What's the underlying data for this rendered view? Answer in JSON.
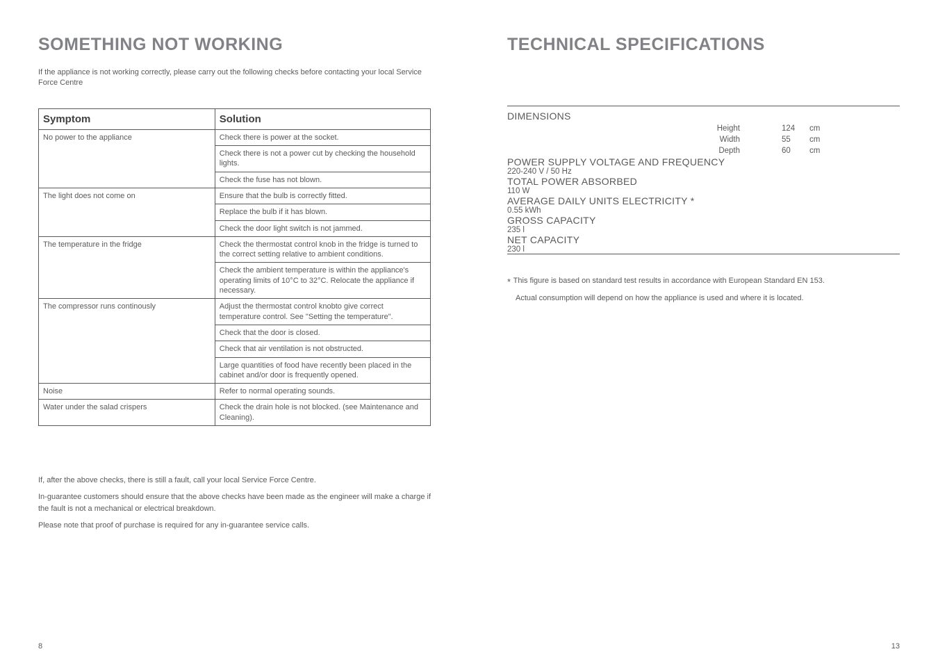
{
  "left": {
    "title": "SOMETHING NOT WORKING",
    "intro": "If the appliance is not working correctly, please carry out the following checks before contacting your local Service Force Centre",
    "table": {
      "head_symptom": "Symptom",
      "head_solution": "Solution",
      "groups": [
        {
          "symptom": "No power to the appliance",
          "solutions": [
            "Check there is power at the socket.",
            "Check there is not a power cut by checking the household lights.",
            "Check the fuse has not blown."
          ]
        },
        {
          "symptom": "The light does not come on",
          "solutions": [
            "Ensure that the bulb is correctly fitted.",
            "Replace the bulb if it has blown.",
            "Check the door light switch is not jammed."
          ]
        },
        {
          "symptom": "The temperature in the fridge",
          "solutions": [
            "Check the thermostat control knob in the fridge is turned to the correct setting relative to ambient conditions.",
            "Check the ambient temperature is within the appliance's operating limits of 10°C  to 32°C. Relocate the appliance if necessary."
          ]
        },
        {
          "symptom": "The compressor runs continously",
          "solutions": [
            "Adjust the thermostat control knobto give correct temperature control. See \"Setting the temperature\".",
            "Check that the door is closed.",
            "Check that air ventilation is not obstructed.",
            "Large quantities of food have recently been placed in the cabinet and/or door is frequently opened."
          ]
        },
        {
          "symptom": "Noise",
          "solutions": [
            "Refer to normal operating sounds."
          ]
        },
        {
          "symptom": "Water under the salad crispers",
          "solutions": [
            "Check the drain hole is not blocked. (see Maintenance and Cleaning)."
          ]
        }
      ]
    },
    "after": [
      "If, after the above checks, there is still a fault, call your local Service Force Centre.",
      "In-guarantee customers should ensure that the above checks have been made as the engineer will make a charge if the fault is not a mechanical or electrical breakdown.",
      "Please note that proof of purchase is required for any in-guarantee service calls."
    ],
    "pagenum": "8"
  },
  "right": {
    "title": "TECHNICAL SPECIFICATIONS",
    "dimensions_header": "DIMENSIONS",
    "dims": [
      {
        "label": "Height",
        "num": "124",
        "unit": "cm"
      },
      {
        "label": "Width",
        "num": "55",
        "unit": "cm"
      },
      {
        "label": "Depth",
        "num": "60",
        "unit": "cm"
      }
    ],
    "rows": [
      {
        "label": "POWER SUPPLY VOLTAGE AND FREQUENCY",
        "value": "220-240 V / 50 Hz"
      },
      {
        "label": "TOTAL POWER ABSORBED",
        "value": "110 W"
      },
      {
        "label": "AVERAGE DAILY UNITS ELECTRICITY *",
        "value": "0.55 kWh"
      },
      {
        "label": "GROSS CAPACITY",
        "value": "235 l"
      },
      {
        "label": "NET CAPACITY",
        "value": "230 l"
      }
    ],
    "footnote1": "This figure is based on standard test results in accordance with European Standard EN 153.",
    "footnote2": "Actual consumption will depend on how the appliance is used and where it is located.",
    "pagenum": "13"
  }
}
